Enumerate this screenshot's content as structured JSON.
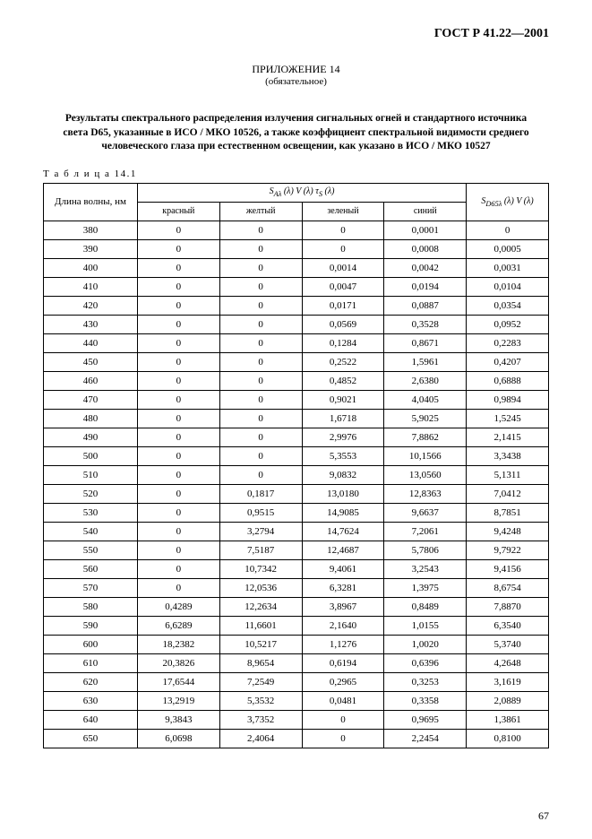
{
  "doc_code": "ГОСТ Р 41.22—2001",
  "appendix_title": "ПРИЛОЖЕНИЕ 14",
  "appendix_sub": "(обязательное)",
  "main_title": "Результаты спектрального распределения излучения сигнальных огней и стандартного источника света D65, указанные в ИСО / МКО 10526, а также коэффициент спектральной видимости среднего человеческого глаза при естественном освещении, как указано в ИСО / МКО 10527",
  "table_label": "Т а б л и ц а  14.1",
  "header_wave": "Длина волны, нм",
  "header_formula1": "S_{Aλ} (λ) V (λ) τ_S (λ)",
  "header_formula2": "S_{D65λ} (λ) V (λ)",
  "color_headers": [
    "красный",
    "желтый",
    "зеленый",
    "синий"
  ],
  "rows": [
    [
      "380",
      "0",
      "0",
      "0",
      "0,0001",
      "0"
    ],
    [
      "390",
      "0",
      "0",
      "0",
      "0,0008",
      "0,0005"
    ],
    [
      "400",
      "0",
      "0",
      "0,0014",
      "0,0042",
      "0,0031"
    ],
    [
      "410",
      "0",
      "0",
      "0,0047",
      "0,0194",
      "0,0104"
    ],
    [
      "420",
      "0",
      "0",
      "0,0171",
      "0,0887",
      "0,0354"
    ],
    [
      "430",
      "0",
      "0",
      "0,0569",
      "0,3528",
      "0,0952"
    ],
    [
      "440",
      "0",
      "0",
      "0,1284",
      "0,8671",
      "0,2283"
    ],
    [
      "450",
      "0",
      "0",
      "0,2522",
      "1,5961",
      "0,4207"
    ],
    [
      "460",
      "0",
      "0",
      "0,4852",
      "2,6380",
      "0,6888"
    ],
    [
      "470",
      "0",
      "0",
      "0,9021",
      "4,0405",
      "0,9894"
    ],
    [
      "480",
      "0",
      "0",
      "1,6718",
      "5,9025",
      "1,5245"
    ],
    [
      "490",
      "0",
      "0",
      "2,9976",
      "7,8862",
      "2,1415"
    ],
    [
      "500",
      "0",
      "0",
      "5,3553",
      "10,1566",
      "3,3438"
    ],
    [
      "510",
      "0",
      "0",
      "9,0832",
      "13,0560",
      "5,1311"
    ],
    [
      "520",
      "0",
      "0,1817",
      "13,0180",
      "12,8363",
      "7,0412"
    ],
    [
      "530",
      "0",
      "0,9515",
      "14,9085",
      "9,6637",
      "8,7851"
    ],
    [
      "540",
      "0",
      "3,2794",
      "14,7624",
      "7,2061",
      "9,4248"
    ],
    [
      "550",
      "0",
      "7,5187",
      "12,4687",
      "5,7806",
      "9,7922"
    ],
    [
      "560",
      "0",
      "10,7342",
      "9,4061",
      "3,2543",
      "9,4156"
    ],
    [
      "570",
      "0",
      "12,0536",
      "6,3281",
      "1,3975",
      "8,6754"
    ],
    [
      "580",
      "0,4289",
      "12,2634",
      "3,8967",
      "0,8489",
      "7,8870"
    ],
    [
      "590",
      "6,6289",
      "11,6601",
      "2,1640",
      "1,0155",
      "6,3540"
    ],
    [
      "600",
      "18,2382",
      "10,5217",
      "1,1276",
      "1,0020",
      "5,3740"
    ],
    [
      "610",
      "20,3826",
      "8,9654",
      "0,6194",
      "0,6396",
      "4,2648"
    ],
    [
      "620",
      "17,6544",
      "7,2549",
      "0,2965",
      "0,3253",
      "3,1619"
    ],
    [
      "630",
      "13,2919",
      "5,3532",
      "0,0481",
      "0,3358",
      "2,0889"
    ],
    [
      "640",
      "9,3843",
      "3,7352",
      "0",
      "0,9695",
      "1,3861"
    ],
    [
      "650",
      "6,0698",
      "2,4064",
      "0",
      "2,2454",
      "0,8100"
    ]
  ],
  "page_number": "67"
}
